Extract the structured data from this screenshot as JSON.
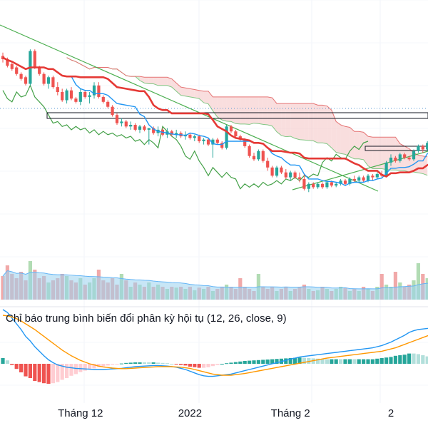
{
  "chart_data": {
    "type": "candlestick",
    "panels": [
      "price",
      "volume",
      "macd"
    ],
    "colors": {
      "up": "#26a69a",
      "down": "#ef5350",
      "kijun": "#e53935",
      "tenkan": "#2196f3",
      "chikou": "#43a047",
      "kumo_bull": "#b7e1b7",
      "kumo_bear": "#f4c2c2",
      "trendline": "#4caf50",
      "volume_ma": "#9ad2ef",
      "macd_line": "#2196f3",
      "signal_line": "#ff9800"
    },
    "price_panel": {
      "y_range": [
        0,
        100
      ],
      "candles": [
        [
          92,
          94,
          88,
          90
        ],
        [
          90,
          91,
          85,
          86
        ],
        [
          87,
          88,
          83,
          84
        ],
        [
          85,
          86,
          80,
          81
        ],
        [
          81,
          82,
          77,
          78
        ],
        [
          79,
          80,
          74,
          75
        ],
        [
          75,
          96,
          74,
          95
        ],
        [
          95,
          96,
          84,
          85
        ],
        [
          85,
          86,
          80,
          81
        ],
        [
          81,
          82,
          74,
          75
        ],
        [
          75,
          80,
          72,
          79
        ],
        [
          79,
          80,
          72,
          73
        ],
        [
          73,
          76,
          68,
          70
        ],
        [
          70,
          72,
          64,
          65
        ],
        [
          65,
          72,
          63,
          71
        ],
        [
          71,
          73,
          65,
          66
        ],
        [
          66,
          67,
          63,
          64
        ],
        [
          64,
          72,
          62,
          70
        ],
        [
          70,
          71,
          66,
          67
        ],
        [
          67,
          70,
          63,
          68
        ],
        [
          68,
          76,
          66,
          74
        ],
        [
          74,
          76,
          66,
          67
        ],
        [
          67,
          68,
          63,
          64
        ],
        [
          64,
          65,
          60,
          61
        ],
        [
          61,
          62,
          55,
          56
        ],
        [
          56,
          57,
          50,
          51
        ],
        [
          51,
          54,
          49,
          52
        ],
        [
          52,
          53,
          48,
          49
        ],
        [
          49,
          52,
          47,
          50
        ],
        [
          50,
          51,
          46,
          47
        ],
        [
          47,
          50,
          45,
          49
        ],
        [
          49,
          50,
          46,
          47
        ],
        [
          47,
          48,
          38,
          48
        ],
        [
          48,
          49,
          44,
          45
        ],
        [
          45,
          49,
          43,
          47
        ],
        [
          47,
          48,
          43,
          44
        ],
        [
          44,
          48,
          42,
          46
        ],
        [
          46,
          47,
          43,
          44
        ],
        [
          44,
          47,
          42,
          45
        ],
        [
          45,
          46,
          42,
          43
        ],
        [
          43,
          46,
          41,
          44
        ],
        [
          44,
          45,
          41,
          42
        ],
        [
          42,
          44,
          40,
          43
        ],
        [
          43,
          44,
          39,
          40
        ],
        [
          40,
          42,
          38,
          41
        ],
        [
          41,
          42,
          37,
          38
        ],
        [
          38,
          42,
          30,
          41
        ],
        [
          41,
          42,
          38,
          39
        ],
        [
          39,
          40,
          35,
          36
        ],
        [
          36,
          50,
          35,
          49
        ],
        [
          49,
          50,
          45,
          46
        ],
        [
          46,
          47,
          42,
          43
        ],
        [
          43,
          44,
          40,
          41
        ],
        [
          41,
          42,
          36,
          37
        ],
        [
          37,
          38,
          30,
          31
        ],
        [
          31,
          33,
          28,
          29
        ],
        [
          29,
          35,
          28,
          34
        ],
        [
          34,
          35,
          27,
          28
        ],
        [
          28,
          30,
          22,
          24
        ],
        [
          24,
          25,
          18,
          19
        ],
        [
          19,
          25,
          18,
          24
        ],
        [
          24,
          25,
          20,
          21
        ],
        [
          21,
          23,
          17,
          18
        ],
        [
          18,
          22,
          16,
          21
        ],
        [
          21,
          22,
          17,
          18
        ],
        [
          18,
          21,
          15,
          17
        ],
        [
          17,
          20,
          10,
          11
        ],
        [
          11,
          15,
          9,
          14
        ],
        [
          14,
          15,
          11,
          12
        ],
        [
          12,
          15,
          11,
          14
        ],
        [
          14,
          15,
          11,
          12
        ],
        [
          12,
          16,
          11,
          15
        ],
        [
          15,
          16,
          12,
          13
        ],
        [
          13,
          15,
          12,
          14
        ],
        [
          14,
          17,
          13,
          16
        ],
        [
          16,
          17,
          13,
          14
        ],
        [
          14,
          18,
          13,
          17
        ],
        [
          17,
          19,
          15,
          16
        ],
        [
          16,
          19,
          15,
          18
        ],
        [
          18,
          19,
          15,
          16
        ],
        [
          16,
          20,
          15,
          19
        ],
        [
          19,
          20,
          16,
          18
        ],
        [
          18,
          21,
          17,
          20
        ],
        [
          20,
          22,
          18,
          19
        ],
        [
          19,
          28,
          18,
          27
        ],
        [
          27,
          32,
          25,
          30
        ],
        [
          30,
          31,
          27,
          28
        ],
        [
          28,
          33,
          27,
          32
        ],
        [
          32,
          33,
          29,
          30
        ],
        [
          30,
          31,
          28,
          29
        ],
        [
          29,
          35,
          28,
          34
        ],
        [
          34,
          38,
          33,
          37
        ],
        [
          37,
          38,
          33,
          35
        ],
        [
          35,
          40,
          34,
          39
        ],
        [
          39,
          42,
          37,
          40
        ]
      ]
    },
    "volume_panel": {
      "values": [
        0.55,
        0.8,
        0.6,
        0.5,
        0.65,
        0.45,
        0.9,
        0.7,
        0.5,
        0.55,
        0.4,
        0.45,
        0.5,
        0.6,
        0.55,
        0.45,
        0.4,
        0.5,
        0.35,
        0.4,
        0.5,
        0.7,
        0.45,
        0.4,
        0.5,
        0.35,
        0.6,
        0.45,
        0.3,
        0.4,
        0.35,
        0.3,
        0.4,
        0.3,
        0.35,
        0.3,
        0.25,
        0.3,
        0.28,
        0.3,
        0.25,
        0.3,
        0.22,
        0.28,
        0.25,
        0.3,
        0.2,
        0.25,
        0.3,
        0.35,
        0.3,
        0.25,
        0.5,
        0.3,
        0.25,
        0.2,
        0.6,
        0.3,
        0.25,
        0.3,
        0.2,
        0.25,
        0.3,
        0.2,
        0.25,
        0.3,
        0.35,
        0.25,
        0.2,
        0.22,
        0.3,
        0.25,
        0.2,
        0.25,
        0.3,
        0.28,
        0.2,
        0.25,
        0.2,
        0.3,
        0.25,
        0.2,
        0.3,
        0.6,
        0.35,
        0.3,
        0.65,
        0.4,
        0.3,
        0.35,
        0.45,
        0.85,
        0.6,
        0.5,
        0.4
      ]
    },
    "macd_panel": {
      "title": "Chỉ báo trung bình biến đổi phân kỳ hội tụ (12, 26, close, 9)",
      "macd": [
        0.95,
        0.9,
        0.8,
        0.7,
        0.6,
        0.48,
        0.4,
        0.3,
        0.22,
        0.14,
        0.07,
        0.02,
        -0.02,
        -0.04,
        -0.06,
        -0.07,
        -0.08,
        -0.085,
        -0.09,
        -0.095,
        -0.1,
        -0.1,
        -0.1,
        -0.095,
        -0.09,
        -0.085,
        -0.08,
        -0.07,
        -0.06,
        -0.05,
        -0.045,
        -0.04,
        -0.035,
        -0.03,
        -0.03,
        -0.035,
        -0.04,
        -0.05,
        -0.06,
        -0.08,
        -0.1,
        -0.13,
        -0.16,
        -0.19,
        -0.21,
        -0.22,
        -0.22,
        -0.21,
        -0.2,
        -0.19,
        -0.18,
        -0.16,
        -0.14,
        -0.12,
        -0.1,
        -0.08,
        -0.06,
        -0.04,
        -0.02,
        0.0,
        0.02,
        0.04,
        0.06,
        0.08,
        0.1,
        0.12,
        0.13,
        0.14,
        0.15,
        0.16,
        0.17,
        0.18,
        0.19,
        0.2,
        0.21,
        0.22,
        0.23,
        0.24,
        0.25,
        0.26,
        0.27,
        0.28,
        0.3,
        0.32,
        0.35,
        0.38,
        0.42,
        0.46,
        0.5,
        0.55,
        0.58,
        0.6,
        0.61,
        0.62,
        0.62
      ],
      "signal": [
        0.85,
        0.84,
        0.82,
        0.79,
        0.75,
        0.7,
        0.65,
        0.6,
        0.54,
        0.48,
        0.42,
        0.36,
        0.3,
        0.24,
        0.19,
        0.14,
        0.1,
        0.06,
        0.03,
        0.0,
        -0.02,
        -0.04,
        -0.055,
        -0.065,
        -0.075,
        -0.08,
        -0.085,
        -0.085,
        -0.08,
        -0.075,
        -0.07,
        -0.065,
        -0.06,
        -0.055,
        -0.05,
        -0.05,
        -0.05,
        -0.05,
        -0.055,
        -0.06,
        -0.07,
        -0.08,
        -0.1,
        -0.12,
        -0.14,
        -0.16,
        -0.18,
        -0.19,
        -0.2,
        -0.2,
        -0.2,
        -0.19,
        -0.18,
        -0.17,
        -0.155,
        -0.14,
        -0.125,
        -0.11,
        -0.095,
        -0.08,
        -0.065,
        -0.05,
        -0.035,
        -0.02,
        -0.005,
        0.01,
        0.025,
        0.04,
        0.055,
        0.07,
        0.085,
        0.1,
        0.11,
        0.12,
        0.13,
        0.14,
        0.15,
        0.16,
        0.17,
        0.18,
        0.19,
        0.2,
        0.21,
        0.22,
        0.24,
        0.26,
        0.28,
        0.31,
        0.34,
        0.37,
        0.4,
        0.43,
        0.46,
        0.49,
        0.52
      ]
    },
    "x_axis_labels": [
      {
        "text": "Tháng 12",
        "index": 17
      },
      {
        "text": "2022",
        "index": 41
      },
      {
        "text": "Tháng 2",
        "index": 63
      },
      {
        "text": "2",
        "index": 85
      }
    ]
  }
}
